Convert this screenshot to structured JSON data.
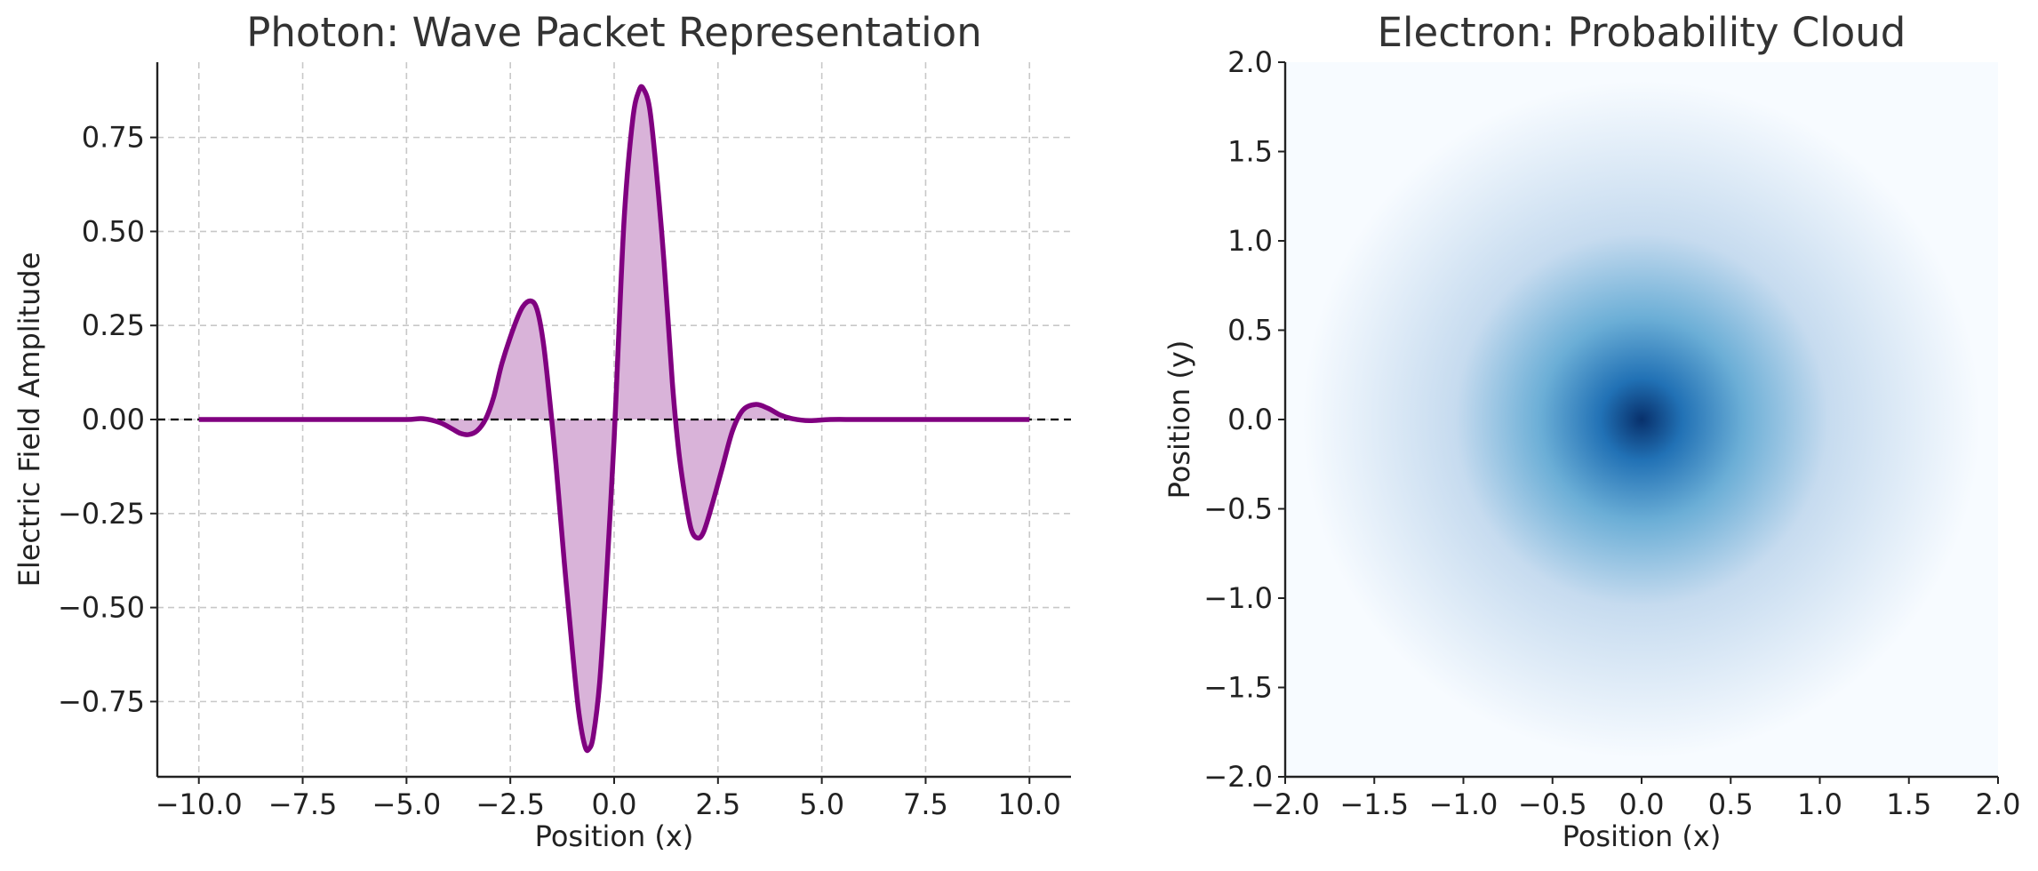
{
  "chart_data": [
    {
      "type": "line",
      "title": "Photon: Wave Packet Representation",
      "xlabel": "Position (x)",
      "ylabel": "Electric Field Amplitude",
      "xlim": [
        -11.0,
        11.0
      ],
      "ylim": [
        -0.95,
        0.95
      ],
      "xticks": [
        -10.0,
        -7.5,
        -5.0,
        -2.5,
        0.0,
        2.5,
        5.0,
        7.5,
        10.0
      ],
      "xtick_labels": [
        "−10.0",
        "−7.5",
        "−5.0",
        "−2.5",
        "0.0",
        "2.5",
        "5.0",
        "7.5",
        "10.0"
      ],
      "yticks": [
        0.75,
        0.5,
        0.25,
        0.0,
        -0.25,
        -0.5,
        -0.75
      ],
      "ytick_labels": [
        "0.75",
        "0.50",
        "0.25",
        "0.00",
        "−0.25",
        "−0.50",
        "−0.75"
      ],
      "grid": true,
      "reference_line_y": 0.0,
      "line_color": "#800080",
      "fill_color": "#d9b3d9",
      "points": [
        [
          -10.0,
          0.0
        ],
        [
          -8.0,
          0.0
        ],
        [
          -6.0,
          0.0
        ],
        [
          -5.0,
          0.0
        ],
        [
          -4.6,
          0.002
        ],
        [
          -4.2,
          -0.008
        ],
        [
          -3.9,
          -0.025
        ],
        [
          -3.7,
          -0.037
        ],
        [
          -3.5,
          -0.04
        ],
        [
          -3.3,
          -0.03
        ],
        [
          -3.1,
          0.0
        ],
        [
          -2.9,
          0.06
        ],
        [
          -2.7,
          0.15
        ],
        [
          -2.4,
          0.25
        ],
        [
          -2.2,
          0.3
        ],
        [
          -2.0,
          0.315
        ],
        [
          -1.85,
          0.29
        ],
        [
          -1.7,
          0.2
        ],
        [
          -1.55,
          0.05
        ],
        [
          -1.4,
          -0.12
        ],
        [
          -1.2,
          -0.38
        ],
        [
          -1.0,
          -0.62
        ],
        [
          -0.85,
          -0.78
        ],
        [
          -0.7,
          -0.87
        ],
        [
          -0.6,
          -0.875
        ],
        [
          -0.5,
          -0.84
        ],
        [
          -0.35,
          -0.7
        ],
        [
          -0.2,
          -0.45
        ],
        [
          0.0,
          -0.05
        ],
        [
          0.1,
          0.2
        ],
        [
          0.25,
          0.55
        ],
        [
          0.45,
          0.8
        ],
        [
          0.6,
          0.875
        ],
        [
          0.7,
          0.88
        ],
        [
          0.85,
          0.83
        ],
        [
          1.0,
          0.68
        ],
        [
          1.2,
          0.42
        ],
        [
          1.4,
          0.1
        ],
        [
          1.55,
          -0.08
        ],
        [
          1.7,
          -0.2
        ],
        [
          1.85,
          -0.29
        ],
        [
          2.0,
          -0.315
        ],
        [
          2.15,
          -0.3
        ],
        [
          2.35,
          -0.23
        ],
        [
          2.6,
          -0.13
        ],
        [
          2.85,
          -0.03
        ],
        [
          3.1,
          0.025
        ],
        [
          3.4,
          0.04
        ],
        [
          3.7,
          0.03
        ],
        [
          4.0,
          0.012
        ],
        [
          4.3,
          0.002
        ],
        [
          4.7,
          -0.003
        ],
        [
          5.2,
          0.0
        ],
        [
          6.0,
          0.0
        ],
        [
          8.0,
          0.0
        ],
        [
          10.0,
          0.0
        ]
      ]
    },
    {
      "type": "heatmap",
      "title": "Electron: Probability Cloud",
      "xlabel": "Position (x)",
      "ylabel": "Position (y)",
      "xlim": [
        -2.0,
        2.0
      ],
      "ylim": [
        -2.0,
        2.0
      ],
      "xticks": [
        -2.0,
        -1.5,
        -1.0,
        -0.5,
        0.0,
        0.5,
        1.0,
        1.5,
        2.0
      ],
      "xtick_labels": [
        "−2.0",
        "−1.5",
        "−1.0",
        "−0.5",
        "0.0",
        "0.5",
        "1.0",
        "1.5",
        "2.0"
      ],
      "yticks": [
        2.0,
        1.5,
        1.0,
        0.5,
        0.0,
        -0.5,
        -1.0,
        -1.5,
        -2.0
      ],
      "ytick_labels": [
        "2.0",
        "1.5",
        "1.0",
        "0.5",
        "0.0",
        "−0.5",
        "−1.0",
        "−1.5",
        "−2.0"
      ],
      "colormap": "Blues",
      "peak_at": [
        0.0,
        0.0
      ],
      "colors": [
        "#08306b",
        "#2171b5",
        "#6baed6",
        "#c6dbef",
        "#f7fbff"
      ]
    }
  ]
}
